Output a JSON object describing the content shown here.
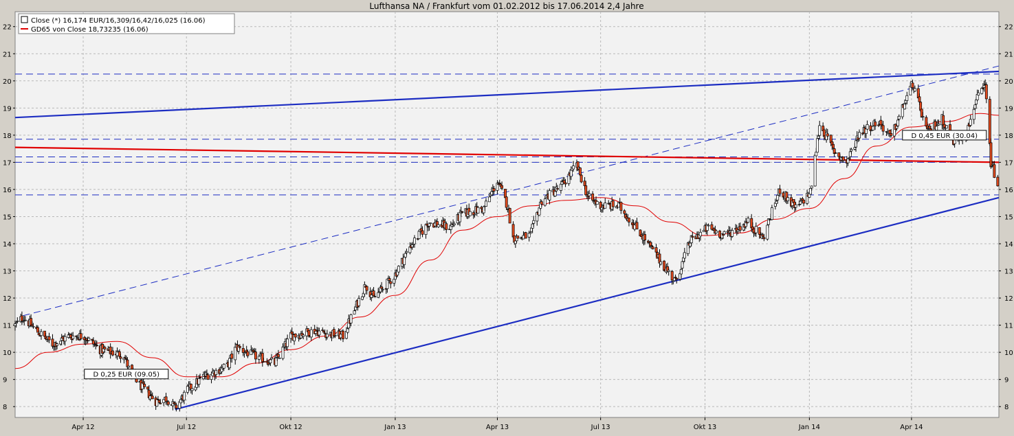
{
  "chart_data": {
    "type": "candlestick",
    "title": "Lufthansa NA / Frankfurt vom 01.02.2012 bis 17.06.2014 2,4 Jahre",
    "legend": {
      "placement": "top-left",
      "entries": [
        {
          "label": "Close (*) 16,174 EUR/16,309/16,42/16,025 (16.06)",
          "color": "#000000",
          "symbol": "box"
        },
        {
          "label": "GD65 von Close 18,73235 (16.06)",
          "color": "#e00000",
          "symbol": "line"
        }
      ]
    },
    "x_ticks": [
      "Apr 12",
      "Jul 12",
      "Okt 12",
      "Jan 13",
      "Apr 13",
      "Jul 13",
      "Okt 13",
      "Jan 14",
      "Apr 14"
    ],
    "x_tick_dates": [
      "2012-04-01",
      "2012-07-01",
      "2012-10-01",
      "2013-01-01",
      "2013-04-01",
      "2013-07-01",
      "2013-10-01",
      "2014-01-01",
      "2014-04-01"
    ],
    "x_range": [
      "2012-02-01",
      "2014-06-17"
    ],
    "ylim": [
      7.6,
      22.55
    ],
    "y_ticks": [
      8,
      9,
      10,
      11,
      12,
      13,
      14,
      15,
      16,
      17,
      18,
      19,
      20,
      21,
      22
    ],
    "grid": true,
    "close_anchors": [
      [
        "2012-02-01",
        11.0
      ],
      [
        "2012-02-08",
        11.3
      ],
      [
        "2012-02-20",
        10.8
      ],
      [
        "2012-03-05",
        10.3
      ],
      [
        "2012-03-20",
        10.6
      ],
      [
        "2012-04-02",
        10.6
      ],
      [
        "2012-04-16",
        10.1
      ],
      [
        "2012-05-07",
        9.9
      ],
      [
        "2012-05-11",
        9.4
      ],
      [
        "2012-05-21",
        8.8
      ],
      [
        "2012-06-04",
        8.2
      ],
      [
        "2012-06-14",
        8.3
      ],
      [
        "2012-06-21",
        7.95
      ],
      [
        "2012-07-02",
        8.6
      ],
      [
        "2012-07-16",
        9.1
      ],
      [
        "2012-08-06",
        9.5
      ],
      [
        "2012-08-14",
        10.2
      ],
      [
        "2012-08-28",
        9.9
      ],
      [
        "2012-09-17",
        9.6
      ],
      [
        "2012-10-01",
        10.6
      ],
      [
        "2012-10-22",
        10.8
      ],
      [
        "2012-11-02",
        10.7
      ],
      [
        "2012-11-16",
        10.6
      ],
      [
        "2012-12-06",
        12.5
      ],
      [
        "2012-12-13",
        12.0
      ],
      [
        "2012-12-31",
        12.8
      ],
      [
        "2013-01-14",
        13.9
      ],
      [
        "2013-01-31",
        14.8
      ],
      [
        "2013-02-18",
        14.6
      ],
      [
        "2013-03-01",
        15.1
      ],
      [
        "2013-03-20",
        15.3
      ],
      [
        "2013-04-01",
        16.3
      ],
      [
        "2013-04-10",
        15.4
      ],
      [
        "2013-04-15",
        14.2
      ],
      [
        "2013-04-30",
        14.3
      ],
      [
        "2013-05-10",
        15.6
      ],
      [
        "2013-05-27",
        16.1
      ],
      [
        "2013-06-10",
        16.9
      ],
      [
        "2013-06-20",
        15.7
      ],
      [
        "2013-07-01",
        15.4
      ],
      [
        "2013-07-17",
        15.4
      ],
      [
        "2013-08-05",
        14.4
      ],
      [
        "2013-08-22",
        13.4
      ],
      [
        "2013-09-05",
        12.6
      ],
      [
        "2013-09-18",
        14.1
      ],
      [
        "2013-10-04",
        14.6
      ],
      [
        "2013-10-18",
        14.3
      ],
      [
        "2013-11-08",
        14.8
      ],
      [
        "2013-11-21",
        14.2
      ],
      [
        "2013-12-06",
        16.0
      ],
      [
        "2013-12-20",
        15.3
      ],
      [
        "2014-01-02",
        15.9
      ],
      [
        "2014-01-10",
        18.4
      ],
      [
        "2014-01-23",
        17.4
      ],
      [
        "2014-02-03",
        17.0
      ],
      [
        "2014-02-14",
        18.1
      ],
      [
        "2014-03-03",
        18.5
      ],
      [
        "2014-03-14",
        17.9
      ],
      [
        "2014-03-27",
        19.3
      ],
      [
        "2014-04-02",
        19.9
      ],
      [
        "2014-04-15",
        18.1
      ],
      [
        "2014-04-28",
        18.6
      ],
      [
        "2014-05-08",
        17.8
      ],
      [
        "2014-05-20",
        18.1
      ],
      [
        "2014-05-27",
        19.2
      ],
      [
        "2014-06-05",
        19.8
      ],
      [
        "2014-06-10",
        17.0
      ],
      [
        "2014-06-16",
        16.17
      ]
    ],
    "moving_average": {
      "name": "GD65",
      "color": "#e00000",
      "points": [
        [
          "2012-02-01",
          9.4
        ],
        [
          "2012-03-01",
          10.0
        ],
        [
          "2012-04-01",
          10.3
        ],
        [
          "2012-05-01",
          10.4
        ],
        [
          "2012-06-01",
          9.8
        ],
        [
          "2012-07-01",
          9.1
        ],
        [
          "2012-08-01",
          9.1
        ],
        [
          "2012-09-01",
          9.6
        ],
        [
          "2012-10-01",
          10.1
        ],
        [
          "2012-11-01",
          10.6
        ],
        [
          "2012-12-01",
          11.3
        ],
        [
          "2013-01-01",
          12.1
        ],
        [
          "2013-02-01",
          13.4
        ],
        [
          "2013-03-01",
          14.5
        ],
        [
          "2013-04-01",
          15.0
        ],
        [
          "2013-05-01",
          15.4
        ],
        [
          "2013-06-01",
          15.6
        ],
        [
          "2013-07-01",
          15.7
        ],
        [
          "2013-08-01",
          15.4
        ],
        [
          "2013-09-01",
          14.8
        ],
        [
          "2013-10-01",
          14.3
        ],
        [
          "2013-11-01",
          14.4
        ],
        [
          "2013-12-01",
          14.9
        ],
        [
          "2014-01-01",
          15.3
        ],
        [
          "2014-02-01",
          16.4
        ],
        [
          "2014-03-01",
          17.6
        ],
        [
          "2014-04-01",
          18.3
        ],
        [
          "2014-05-01",
          18.5
        ],
        [
          "2014-06-01",
          18.8
        ],
        [
          "2014-06-17",
          18.73
        ]
      ]
    },
    "trendlines": [
      {
        "style": "solid",
        "color": "#1c2dc2",
        "from": [
          "2012-02-01",
          18.65
        ],
        "to": [
          "2014-06-17",
          20.35
        ]
      },
      {
        "style": "solid",
        "color": "#1c2dc2",
        "from": [
          "2012-06-21",
          7.9
        ],
        "to": [
          "2014-06-17",
          15.7
        ]
      },
      {
        "style": "dashed",
        "color": "#1c2dc2",
        "from": [
          "2012-02-08",
          11.35
        ],
        "to": [
          "2014-06-17",
          20.55
        ]
      },
      {
        "style": "solid",
        "color": "#e00000",
        "from": [
          "2012-02-01",
          17.55
        ],
        "to": [
          "2014-06-17",
          17.0
        ]
      }
    ],
    "horizontal_levels": [
      20.25,
      17.85,
      17.2,
      17.0,
      15.8
    ],
    "dividend_annotations": [
      {
        "label": "D 0,25 EUR (09.05)",
        "date": "2012-05-09"
      },
      {
        "label": "D 0,45 EUR (30.04)",
        "date": "2014-04-30"
      }
    ]
  }
}
